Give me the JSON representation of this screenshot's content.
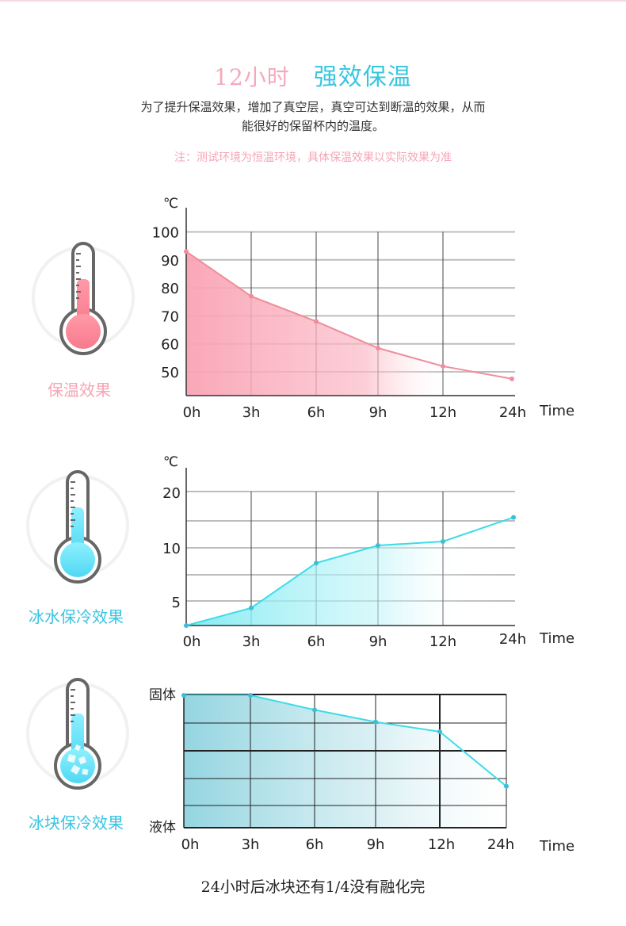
{
  "header": {
    "title_part1": "12小时",
    "title_part2": "强效保温",
    "desc_line1": "为了提升保温效果，增加了真空层，真空可达到断温的效果，从而",
    "desc_line2": "能很好的保留杯内的温度。",
    "note": "注：测试环境为恒温环境，具体保温效果以实际效果为准"
  },
  "panels": [
    {
      "label": "保温效果",
      "color": "#f6a4b6"
    },
    {
      "label": "冰水保冷效果",
      "color": "#39c4e2"
    },
    {
      "label": "冰块保冷效果",
      "color": "#39c4e2"
    }
  ],
  "footer": "24小时后冰块还有1/4没有融化完",
  "chart_data": [
    {
      "type": "area",
      "unit_label": "℃",
      "categories": [
        "0h",
        "3h",
        "6h",
        "9h",
        "12h",
        "24h"
      ],
      "xlabel": "Time",
      "yticks": [
        50,
        60,
        70,
        80,
        90,
        100
      ],
      "ylim": [
        41,
        100
      ],
      "values": [
        93,
        77,
        68,
        58.5,
        52,
        47.5
      ],
      "line_color": "#f08c9c",
      "fill_color": "#f9a3b4"
    },
    {
      "type": "area",
      "unit_label": "℃",
      "categories": [
        "0h",
        "3h",
        "6h",
        "9h",
        "12h",
        "24h"
      ],
      "xlabel": "Time",
      "yticks": [
        5,
        10,
        20
      ],
      "ylim": [
        2,
        20
      ],
      "values": [
        2,
        4.2,
        9.8,
        12,
        12.5,
        15.5
      ],
      "line_color": "#3ddce8",
      "fill_color": "#7eeaf2"
    },
    {
      "type": "area",
      "categories": [
        "0h",
        "3h",
        "6h",
        "9h",
        "12h",
        "24h"
      ],
      "xlabel": "Time",
      "ytop_label": "固体",
      "ybottom_label": "液体",
      "values": [
        1.0,
        1.0,
        0.88,
        0.78,
        0.7,
        0.25
      ],
      "line_color": "#3ddce8",
      "fill_color": "#8ed3df"
    }
  ]
}
